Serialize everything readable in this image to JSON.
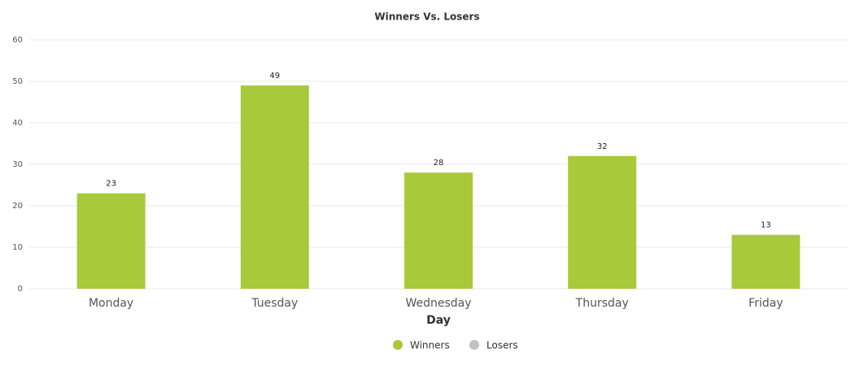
{
  "chart_data": {
    "type": "bar",
    "title": "Winners Vs. Losers",
    "x_label": "Day",
    "categories": [
      "Monday",
      "Tuesday",
      "Wednesday",
      "Thursday",
      "Friday"
    ],
    "series": [
      {
        "name": "Winners",
        "color": "#a8c93a",
        "values": [
          23,
          49,
          28,
          32,
          13
        ]
      },
      {
        "name": "Losers",
        "color": "#999999",
        "values": [
          null,
          null,
          null,
          null,
          null
        ]
      }
    ],
    "ylim": [
      0,
      60
    ],
    "yticks": [
      0,
      10,
      20,
      30,
      40,
      50,
      60
    ],
    "grid": true
  }
}
